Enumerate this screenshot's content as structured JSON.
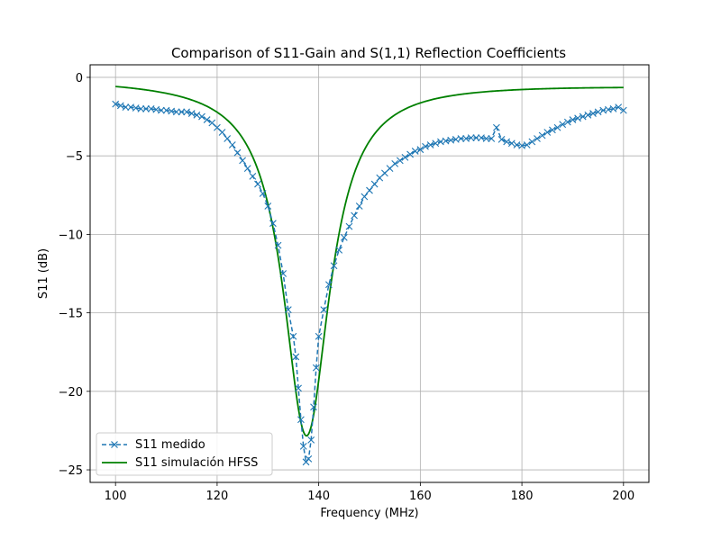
{
  "chart_data": {
    "type": "line",
    "title": "Comparison of S11-Gain and S(1,1) Reflection Coefficients",
    "xlabel": "Frequency (MHz)",
    "ylabel": "S11 (dB)",
    "xlim": [
      95,
      205
    ],
    "ylim": [
      -25.8,
      0.8
    ],
    "xticks": [
      100,
      120,
      140,
      160,
      180,
      200
    ],
    "yticks": [
      0,
      -5,
      -10,
      -15,
      -20,
      -25
    ],
    "xtick_labels": [
      "100",
      "120",
      "140",
      "160",
      "180",
      "200"
    ],
    "ytick_labels": [
      "0",
      "−5",
      "−10",
      "−15",
      "−20",
      "−25"
    ],
    "grid": true,
    "legend_position": "lower-left",
    "series": [
      {
        "name": "S11 medido",
        "color": "#1f77b4",
        "style": "dashed",
        "marker": "x",
        "x": [
          100,
          101,
          102,
          103,
          104,
          105,
          106,
          107,
          108,
          109,
          110,
          111,
          112,
          113,
          114,
          115,
          116,
          117,
          118,
          119,
          120,
          121,
          122,
          123,
          124,
          125,
          126,
          127,
          128,
          129,
          130,
          131,
          132,
          133,
          134,
          135,
          135.5,
          136,
          136.5,
          137,
          137.5,
          138,
          138.5,
          139,
          139.5,
          140,
          141,
          142,
          143,
          144,
          145,
          146,
          147,
          148,
          149,
          150,
          151,
          152,
          153,
          154,
          155,
          156,
          157,
          158,
          159,
          160,
          161,
          162,
          163,
          164,
          165,
          166,
          167,
          168,
          169,
          170,
          171,
          172,
          173,
          174,
          175,
          176,
          177,
          178,
          179,
          180,
          181,
          182,
          183,
          184,
          185,
          186,
          187,
          188,
          189,
          190,
          191,
          192,
          193,
          194,
          195,
          196,
          197,
          198,
          199,
          200
        ],
        "y": [
          -1.7,
          -1.8,
          -1.9,
          -1.9,
          -1.95,
          -2.0,
          -2.0,
          -2.0,
          -2.05,
          -2.1,
          -2.1,
          -2.15,
          -2.2,
          -2.2,
          -2.2,
          -2.3,
          -2.4,
          -2.5,
          -2.7,
          -2.9,
          -3.2,
          -3.5,
          -3.9,
          -4.3,
          -4.8,
          -5.3,
          -5.8,
          -6.3,
          -6.8,
          -7.4,
          -8.2,
          -9.3,
          -10.7,
          -12.5,
          -14.8,
          -16.5,
          -17.8,
          -19.8,
          -21.8,
          -23.5,
          -24.5,
          -24.3,
          -23.1,
          -21.0,
          -18.5,
          -16.5,
          -14.8,
          -13.2,
          -12.0,
          -11.0,
          -10.2,
          -9.5,
          -8.8,
          -8.2,
          -7.6,
          -7.2,
          -6.8,
          -6.4,
          -6.1,
          -5.8,
          -5.5,
          -5.3,
          -5.1,
          -4.9,
          -4.7,
          -4.6,
          -4.4,
          -4.3,
          -4.2,
          -4.1,
          -4.05,
          -4.0,
          -3.95,
          -3.9,
          -3.9,
          -3.85,
          -3.85,
          -3.85,
          -3.9,
          -3.9,
          -3.2,
          -3.95,
          -4.1,
          -4.2,
          -4.3,
          -4.35,
          -4.3,
          -4.1,
          -3.9,
          -3.7,
          -3.5,
          -3.35,
          -3.2,
          -3.0,
          -2.85,
          -2.7,
          -2.6,
          -2.5,
          -2.4,
          -2.3,
          -2.2,
          -2.1,
          -2.05,
          -2.0,
          -1.9,
          -2.1
        ]
      },
      {
        "name": "S11 simulación HFSS",
        "color": "#008000",
        "style": "solid",
        "model": "lorentzian",
        "model_params": {
          "center": 137.6,
          "depth": 22.6,
          "half_width": 5.55,
          "offset": -0.1,
          "slope": 0.0037
        },
        "x_range": [
          100,
          200
        ]
      }
    ]
  }
}
